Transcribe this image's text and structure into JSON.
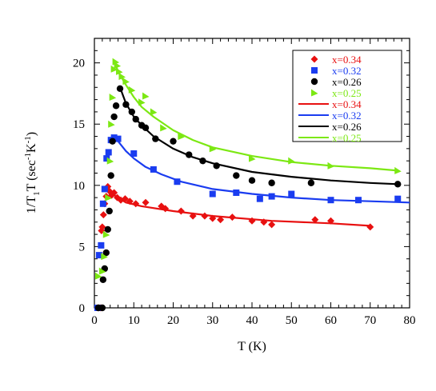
{
  "chart_data": {
    "type": "scatter",
    "title": "",
    "xlabel": "T (K)",
    "ylabel_main": "1/T",
    "ylabel_sub1": "1",
    "ylabel_mid": "T (sec",
    "ylabel_sup1": "-1",
    "ylabel_mid2": "K",
    "ylabel_sup2": "-1",
    "ylabel_end": ")",
    "xlim": [
      0,
      80
    ],
    "ylim": [
      0,
      22
    ],
    "xticks": [
      0,
      10,
      20,
      30,
      40,
      50,
      60,
      70,
      80
    ],
    "yticks": [
      0,
      5,
      10,
      15,
      20
    ],
    "grid": false,
    "legend_position": "top-right",
    "series": [
      {
        "name": "x=0.34",
        "color": "#e81010",
        "marker": "diamond",
        "points": [
          [
            1.0,
            0.0
          ],
          [
            1.6,
            0.0
          ],
          [
            1.8,
            6.3
          ],
          [
            2.0,
            6.6
          ],
          [
            2.3,
            7.6
          ],
          [
            2.6,
            8.5
          ],
          [
            3.0,
            9.1
          ],
          [
            3.4,
            9.9
          ],
          [
            3.9,
            9.5
          ],
          [
            4.4,
            9.2
          ],
          [
            5.0,
            9.4
          ],
          [
            5.8,
            9.0
          ],
          [
            6.7,
            8.8
          ],
          [
            7.8,
            8.9
          ],
          [
            9.0,
            8.7
          ],
          [
            10.5,
            8.5
          ],
          [
            13.0,
            8.6
          ],
          [
            17.0,
            8.3
          ],
          [
            18.0,
            8.1
          ],
          [
            22.0,
            7.9
          ],
          [
            25.0,
            7.5
          ],
          [
            28.0,
            7.5
          ],
          [
            30.0,
            7.3
          ],
          [
            32.0,
            7.2
          ],
          [
            35.0,
            7.4
          ],
          [
            40.0,
            7.1
          ],
          [
            43.0,
            7.0
          ],
          [
            45.0,
            6.8
          ],
          [
            56.0,
            7.2
          ],
          [
            60.0,
            7.1
          ],
          [
            70.0,
            6.6
          ]
        ]
      },
      {
        "name": "x=0.32",
        "color": "#1a3cf0",
        "marker": "square",
        "points": [
          [
            0.8,
            0.0
          ],
          [
            1.2,
            4.3
          ],
          [
            1.7,
            5.1
          ],
          [
            2.2,
            8.5
          ],
          [
            2.6,
            9.7
          ],
          [
            3.1,
            12.2
          ],
          [
            3.6,
            12.7
          ],
          [
            4.2,
            13.7
          ],
          [
            5.0,
            13.9
          ],
          [
            6.0,
            13.8
          ],
          [
            10.0,
            12.6
          ],
          [
            15.0,
            11.3
          ],
          [
            21.0,
            10.3
          ],
          [
            30.0,
            9.3
          ],
          [
            36.0,
            9.4
          ],
          [
            42.0,
            8.9
          ],
          [
            45.0,
            9.1
          ],
          [
            50.0,
            9.3
          ],
          [
            60.0,
            8.8
          ],
          [
            67.0,
            8.8
          ],
          [
            77.0,
            8.9
          ]
        ]
      },
      {
        "name": "x=0.26",
        "color": "#000000",
        "marker": "circle",
        "points": [
          [
            1.0,
            0.0
          ],
          [
            2.0,
            0.0
          ],
          [
            2.2,
            2.3
          ],
          [
            2.6,
            3.2
          ],
          [
            3.0,
            4.5
          ],
          [
            3.4,
            6.4
          ],
          [
            3.8,
            7.9
          ],
          [
            4.2,
            10.8
          ],
          [
            4.6,
            13.6
          ],
          [
            5.0,
            15.6
          ],
          [
            5.5,
            16.5
          ],
          [
            6.5,
            17.9
          ],
          [
            8.0,
            16.6
          ],
          [
            9.5,
            16.0
          ],
          [
            10.5,
            15.4
          ],
          [
            12.0,
            14.9
          ],
          [
            13.0,
            14.7
          ],
          [
            15.5,
            13.8
          ],
          [
            20.0,
            13.6
          ],
          [
            24.0,
            12.5
          ],
          [
            27.5,
            12.0
          ],
          [
            31.0,
            11.6
          ],
          [
            36.0,
            10.8
          ],
          [
            40.0,
            10.4
          ],
          [
            45.0,
            10.2
          ],
          [
            55.0,
            10.2
          ],
          [
            77.0,
            10.1
          ]
        ]
      },
      {
        "name": "x=0.25",
        "color": "#7ce813",
        "marker": "triangle",
        "points": [
          [
            1.0,
            2.6
          ],
          [
            2.0,
            3.0
          ],
          [
            2.5,
            4.2
          ],
          [
            3.0,
            6.0
          ],
          [
            3.5,
            9.0
          ],
          [
            4.0,
            12.0
          ],
          [
            4.3,
            15.0
          ],
          [
            4.6,
            17.2
          ],
          [
            5.0,
            19.5
          ],
          [
            5.4,
            20.1
          ],
          [
            5.8,
            19.8
          ],
          [
            6.3,
            19.3
          ],
          [
            7.0,
            18.9
          ],
          [
            8.0,
            18.5
          ],
          [
            9.5,
            17.8
          ],
          [
            12.0,
            16.8
          ],
          [
            13.0,
            17.3
          ],
          [
            15.0,
            16.0
          ],
          [
            17.5,
            14.7
          ],
          [
            22.0,
            14.0
          ],
          [
            30.0,
            13.0
          ],
          [
            40.0,
            12.2
          ],
          [
            50.0,
            12.0
          ],
          [
            60.0,
            11.6
          ],
          [
            77.0,
            11.2
          ]
        ]
      }
    ],
    "fits": [
      {
        "name": "x=0.34",
        "color": "#e81010",
        "points": [
          [
            3.0,
            9.8
          ],
          [
            5.0,
            9.2
          ],
          [
            8.0,
            8.6
          ],
          [
            12.0,
            8.3
          ],
          [
            20.0,
            7.9
          ],
          [
            30.0,
            7.5
          ],
          [
            45.0,
            7.1
          ],
          [
            60.0,
            6.9
          ],
          [
            70.0,
            6.7
          ]
        ]
      },
      {
        "name": "x=0.32",
        "color": "#1a3cf0",
        "points": [
          [
            4.8,
            14.0
          ],
          [
            6.0,
            13.6
          ],
          [
            8.0,
            12.8
          ],
          [
            10.0,
            12.2
          ],
          [
            13.0,
            11.5
          ],
          [
            17.0,
            10.9
          ],
          [
            22.0,
            10.3
          ],
          [
            30.0,
            9.7
          ],
          [
            40.0,
            9.3
          ],
          [
            50.0,
            9.0
          ],
          [
            60.0,
            8.8
          ],
          [
            70.0,
            8.7
          ],
          [
            80.0,
            8.6
          ]
        ]
      },
      {
        "name": "x=0.26",
        "color": "#000000",
        "points": [
          [
            6.5,
            18.0
          ],
          [
            8.0,
            16.7
          ],
          [
            10.0,
            15.6
          ],
          [
            12.0,
            14.9
          ],
          [
            15.0,
            14.0
          ],
          [
            20.0,
            13.0
          ],
          [
            25.0,
            12.3
          ],
          [
            30.0,
            11.8
          ],
          [
            40.0,
            11.1
          ],
          [
            50.0,
            10.7
          ],
          [
            60.0,
            10.4
          ],
          [
            70.0,
            10.2
          ],
          [
            77.0,
            10.1
          ]
        ]
      },
      {
        "name": "x=0.25",
        "color": "#7ce813",
        "points": [
          [
            5.0,
            20.2
          ],
          [
            6.0,
            19.3
          ],
          [
            8.0,
            18.2
          ],
          [
            10.0,
            17.2
          ],
          [
            12.0,
            16.4
          ],
          [
            15.0,
            15.6
          ],
          [
            20.0,
            14.5
          ],
          [
            25.0,
            13.7
          ],
          [
            30.0,
            13.1
          ],
          [
            40.0,
            12.4
          ],
          [
            50.0,
            11.9
          ],
          [
            60.0,
            11.6
          ],
          [
            70.0,
            11.4
          ],
          [
            77.0,
            11.2
          ]
        ]
      }
    ]
  }
}
